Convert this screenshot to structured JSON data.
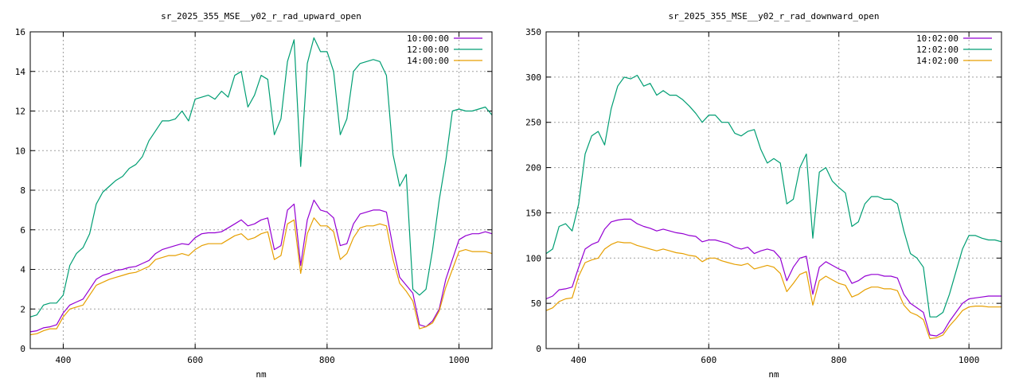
{
  "chart_data": [
    {
      "type": "line",
      "title": "sr_2025_355_MSE__y02_r_rad_upward_open",
      "xlabel": "nm",
      "ylabel": "",
      "xlim": [
        350,
        1050
      ],
      "ylim": [
        0,
        16
      ],
      "xticks": [
        400,
        600,
        800,
        1000
      ],
      "yticks": [
        0,
        2,
        4,
        6,
        8,
        10,
        12,
        14,
        16
      ],
      "grid": true,
      "legend": "top-right",
      "x": [
        350,
        360,
        370,
        380,
        390,
        400,
        410,
        420,
        430,
        440,
        450,
        460,
        470,
        480,
        490,
        500,
        510,
        520,
        530,
        540,
        550,
        560,
        570,
        580,
        590,
        600,
        610,
        620,
        630,
        640,
        650,
        660,
        670,
        680,
        690,
        700,
        710,
        720,
        730,
        740,
        750,
        760,
        770,
        780,
        790,
        800,
        810,
        820,
        830,
        840,
        850,
        860,
        870,
        880,
        890,
        900,
        910,
        920,
        930,
        940,
        950,
        960,
        970,
        980,
        990,
        1000,
        1010,
        1020,
        1030,
        1040,
        1050
      ],
      "series": [
        {
          "name": "10:00:00",
          "color": "#9400d3",
          "values": [
            0.85,
            0.9,
            1.05,
            1.1,
            1.2,
            1.8,
            2.2,
            2.35,
            2.5,
            3.0,
            3.5,
            3.7,
            3.8,
            3.95,
            4.0,
            4.1,
            4.15,
            4.3,
            4.45,
            4.8,
            5.0,
            5.1,
            5.2,
            5.3,
            5.25,
            5.6,
            5.8,
            5.85,
            5.85,
            5.9,
            6.1,
            6.3,
            6.5,
            6.2,
            6.3,
            6.5,
            6.6,
            5.0,
            5.2,
            7.0,
            7.3,
            4.2,
            6.5,
            7.5,
            7.0,
            6.9,
            6.6,
            5.2,
            5.3,
            6.3,
            6.8,
            6.9,
            7.0,
            7.0,
            6.9,
            5.1,
            3.6,
            3.2,
            2.8,
            1.2,
            1.1,
            1.4,
            2.0,
            3.5,
            4.5,
            5.5,
            5.7,
            5.8,
            5.8,
            5.9,
            5.8
          ]
        },
        {
          "name": "12:00:00",
          "color": "#009e73",
          "values": [
            1.6,
            1.7,
            2.2,
            2.3,
            2.3,
            2.7,
            4.2,
            4.8,
            5.1,
            5.8,
            7.3,
            7.9,
            8.2,
            8.5,
            8.7,
            9.1,
            9.3,
            9.7,
            10.5,
            11.0,
            11.5,
            11.5,
            11.6,
            12.0,
            11.5,
            12.6,
            12.7,
            12.8,
            12.6,
            13.0,
            12.7,
            13.8,
            14.0,
            12.2,
            12.8,
            13.8,
            13.6,
            10.8,
            11.6,
            14.5,
            15.6,
            9.2,
            14.4,
            15.7,
            15.0,
            15.0,
            14.0,
            10.8,
            11.6,
            14.0,
            14.4,
            14.5,
            14.6,
            14.5,
            13.8,
            9.8,
            8.2,
            8.8,
            3.0,
            2.7,
            3.0,
            5.0,
            7.5,
            9.5,
            12.0,
            12.1,
            12.0,
            12.0,
            12.1,
            12.2,
            11.8
          ]
        },
        {
          "name": "14:00:00",
          "color": "#e69f00",
          "values": [
            0.7,
            0.75,
            0.9,
            1.0,
            1.0,
            1.6,
            2.0,
            2.1,
            2.2,
            2.7,
            3.2,
            3.35,
            3.5,
            3.6,
            3.7,
            3.8,
            3.85,
            4.0,
            4.15,
            4.5,
            4.6,
            4.7,
            4.7,
            4.8,
            4.7,
            5.0,
            5.2,
            5.3,
            5.3,
            5.3,
            5.5,
            5.7,
            5.8,
            5.5,
            5.6,
            5.8,
            5.9,
            4.5,
            4.7,
            6.3,
            6.5,
            3.8,
            5.8,
            6.6,
            6.2,
            6.2,
            5.9,
            4.5,
            4.8,
            5.6,
            6.1,
            6.2,
            6.2,
            6.3,
            6.2,
            4.5,
            3.3,
            2.9,
            2.4,
            1.0,
            1.1,
            1.3,
            1.9,
            3.1,
            4.0,
            4.9,
            5.0,
            4.9,
            4.9,
            4.9,
            4.8
          ]
        }
      ]
    },
    {
      "type": "line",
      "title": "sr_2025_355_MSE__y02_r_rad_downward_open",
      "xlabel": "nm",
      "ylabel": "",
      "xlim": [
        350,
        1050
      ],
      "ylim": [
        0,
        350
      ],
      "xticks": [
        400,
        600,
        800,
        1000
      ],
      "yticks": [
        0,
        50,
        100,
        150,
        200,
        250,
        300,
        350
      ],
      "grid": true,
      "legend": "top-right",
      "x": [
        350,
        360,
        370,
        380,
        390,
        400,
        410,
        420,
        430,
        440,
        450,
        460,
        470,
        480,
        490,
        500,
        510,
        520,
        530,
        540,
        550,
        560,
        570,
        580,
        590,
        600,
        610,
        620,
        630,
        640,
        650,
        660,
        670,
        680,
        690,
        700,
        710,
        720,
        730,
        740,
        750,
        760,
        770,
        780,
        790,
        800,
        810,
        820,
        830,
        840,
        850,
        860,
        870,
        880,
        890,
        900,
        910,
        920,
        930,
        940,
        950,
        960,
        970,
        980,
        990,
        1000,
        1010,
        1020,
        1030,
        1040,
        1050
      ],
      "series": [
        {
          "name": "10:02:00",
          "color": "#9400d3",
          "values": [
            55,
            58,
            65,
            66,
            68,
            90,
            110,
            115,
            118,
            132,
            140,
            142,
            143,
            143,
            138,
            135,
            133,
            130,
            132,
            130,
            128,
            127,
            125,
            124,
            118,
            120,
            120,
            118,
            116,
            112,
            110,
            112,
            105,
            108,
            110,
            108,
            100,
            75,
            90,
            100,
            102,
            60,
            90,
            96,
            92,
            88,
            85,
            72,
            75,
            80,
            82,
            82,
            80,
            80,
            78,
            60,
            50,
            45,
            40,
            15,
            14,
            18,
            30,
            40,
            50,
            55,
            56,
            57,
            58,
            58,
            58
          ]
        },
        {
          "name": "12:02:00",
          "color": "#009e73",
          "values": [
            105,
            110,
            135,
            138,
            130,
            160,
            215,
            235,
            240,
            225,
            265,
            290,
            300,
            298,
            302,
            290,
            293,
            280,
            285,
            280,
            280,
            275,
            268,
            260,
            250,
            258,
            258,
            250,
            250,
            238,
            235,
            240,
            242,
            220,
            205,
            210,
            205,
            160,
            165,
            200,
            215,
            122,
            195,
            200,
            185,
            178,
            172,
            135,
            140,
            160,
            168,
            168,
            165,
            165,
            160,
            130,
            105,
            100,
            90,
            35,
            35,
            40,
            60,
            85,
            110,
            125,
            125,
            122,
            120,
            120,
            118
          ]
        },
        {
          "name": "14:02:00",
          "color": "#e69f00",
          "values": [
            42,
            45,
            52,
            55,
            56,
            80,
            95,
            98,
            100,
            110,
            115,
            118,
            117,
            117,
            114,
            112,
            110,
            108,
            110,
            108,
            106,
            105,
            103,
            102,
            96,
            100,
            100,
            97,
            95,
            93,
            92,
            94,
            88,
            90,
            92,
            90,
            83,
            63,
            72,
            82,
            85,
            48,
            75,
            80,
            76,
            72,
            70,
            57,
            60,
            65,
            68,
            68,
            66,
            66,
            64,
            48,
            40,
            37,
            32,
            11,
            12,
            15,
            25,
            33,
            42,
            46,
            47,
            47,
            46,
            46,
            46
          ]
        }
      ]
    }
  ]
}
